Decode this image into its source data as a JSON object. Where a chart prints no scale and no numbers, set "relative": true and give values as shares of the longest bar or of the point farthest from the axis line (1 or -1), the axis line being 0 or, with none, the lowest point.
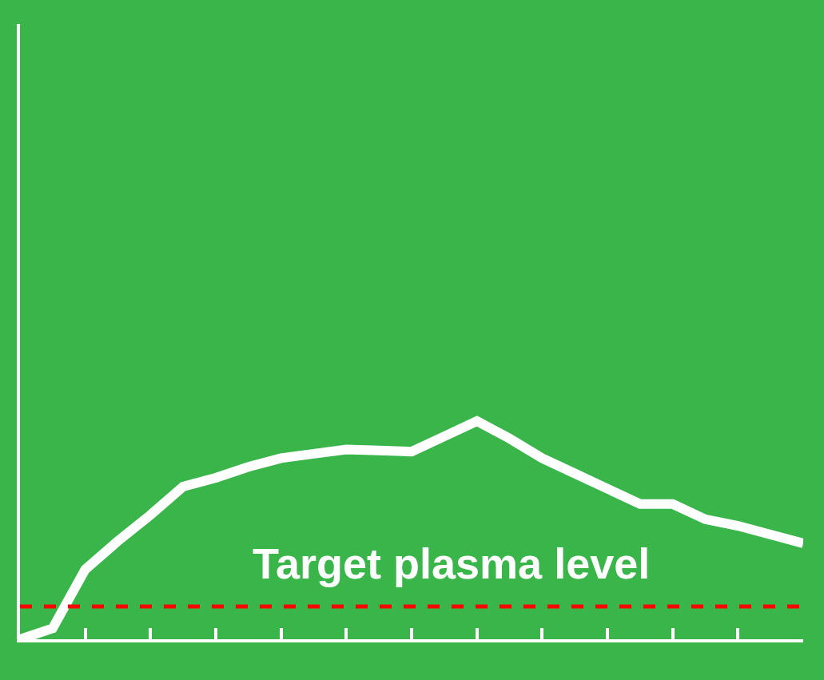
{
  "chart_data": {
    "type": "line",
    "relative": true,
    "categories": [
      null,
      null,
      null,
      null,
      null,
      null,
      null,
      null,
      null,
      null,
      null,
      null,
      null,
      null,
      null,
      null,
      null,
      null,
      null,
      null,
      null,
      null,
      null,
      null,
      null
    ],
    "series": [
      {
        "color": "#ffffff",
        "values": [
          0,
          0.05,
          0.32,
          0.45,
          0.57,
          0.7,
          0.74,
          0.79,
          0.83,
          0.85,
          0.87,
          0.865,
          0.86,
          0.93,
          1,
          0.92,
          0.83,
          0.76,
          0.69,
          0.62,
          0.62,
          0.55,
          0.52,
          0.48,
          0.44
        ]
      }
    ],
    "ref_lines": [
      {
        "axis": "y",
        "value": 0.15,
        "label": "Target plasma level",
        "color": "#ff0000",
        "line_style": "dashed"
      }
    ],
    "grid": false,
    "marker": "none",
    "line_style": "solid"
  }
}
